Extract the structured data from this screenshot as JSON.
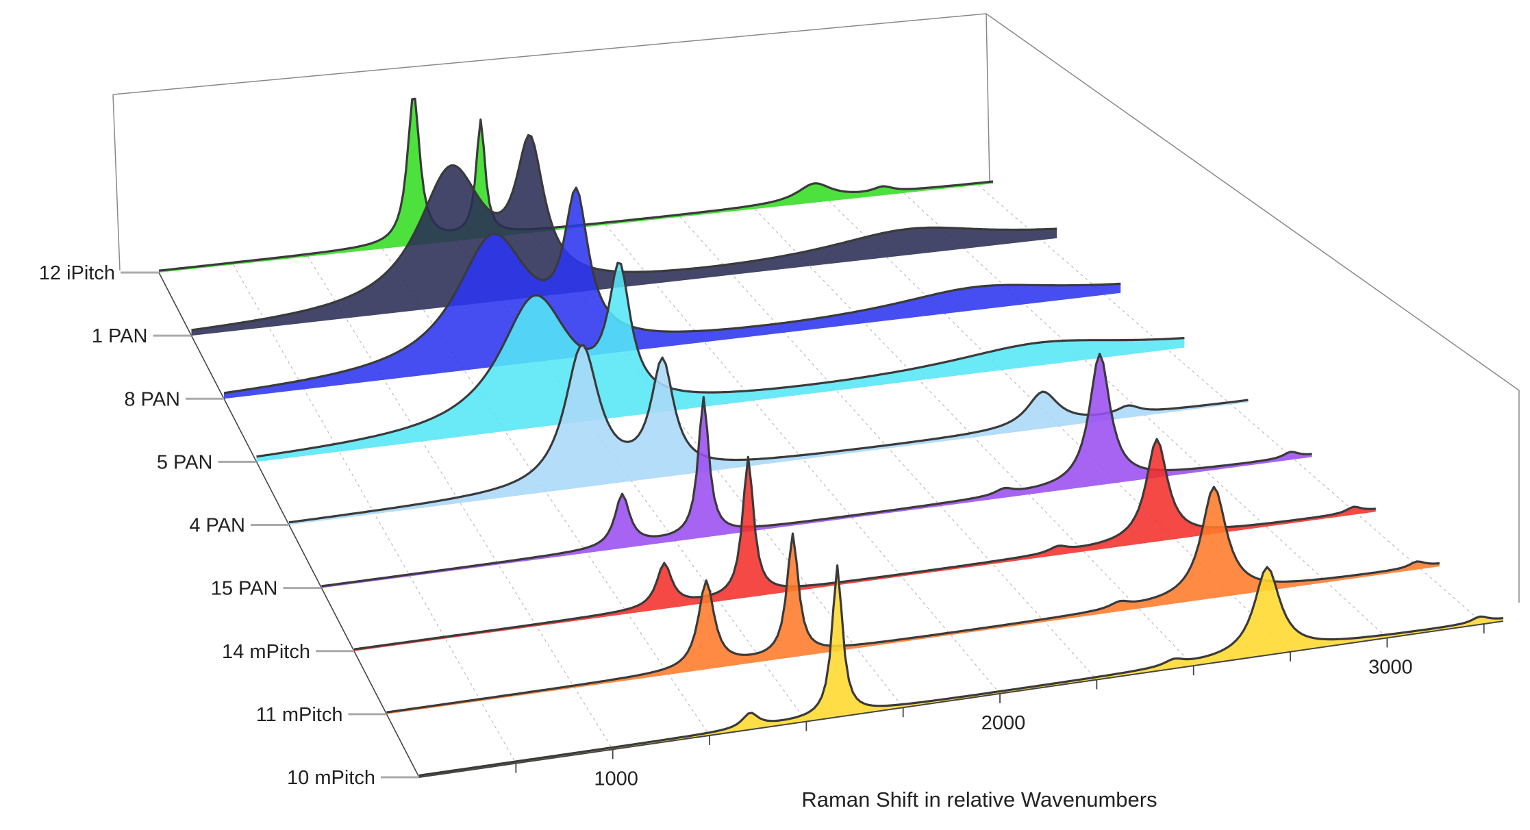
{
  "chart_data": {
    "type": "area",
    "title": "",
    "xlabel": "Raman Shift in relative Wavenumbers",
    "ylabel": "",
    "xlim": [
      500,
      3300
    ],
    "xticks": [
      1000,
      2000,
      3000
    ],
    "xtick_labels": [
      "1000",
      "2000",
      "3000"
    ],
    "grid": true,
    "legend": "none",
    "series": [
      {
        "name": "12 iPitch",
        "color": "#33dd22",
        "peaks": [
          {
            "x": 1355,
            "h": 0.52,
            "w": 25
          },
          {
            "x": 1580,
            "h": 0.4,
            "w": 18
          },
          {
            "x": 2700,
            "h": 0.06,
            "w": 70
          },
          {
            "x": 2930,
            "h": 0.02,
            "w": 40
          }
        ]
      },
      {
        "name": "1 PAN",
        "color": "#2a2e55",
        "peaks": [
          {
            "x": 1340,
            "h": 0.46,
            "w": 130
          },
          {
            "x": 1595,
            "h": 0.46,
            "w": 55
          },
          {
            "x": 2820,
            "h": 0.08,
            "w": 320
          }
        ]
      },
      {
        "name": "8 PAN",
        "color": "#2c35f0",
        "peaks": [
          {
            "x": 1340,
            "h": 0.44,
            "w": 140
          },
          {
            "x": 1600,
            "h": 0.48,
            "w": 45
          },
          {
            "x": 2850,
            "h": 0.07,
            "w": 320
          }
        ]
      },
      {
        "name": "5 PAN",
        "color": "#55e6f6",
        "peaks": [
          {
            "x": 1340,
            "h": 0.44,
            "w": 130
          },
          {
            "x": 1595,
            "h": 0.44,
            "w": 40
          },
          {
            "x": 2860,
            "h": 0.07,
            "w": 330
          }
        ]
      },
      {
        "name": "4 PAN",
        "color": "#a9d8f8",
        "peaks": [
          {
            "x": 1355,
            "h": 0.48,
            "w": 60
          },
          {
            "x": 1590,
            "h": 0.38,
            "w": 40
          },
          {
            "x": 2700,
            "h": 0.12,
            "w": 55
          },
          {
            "x": 2950,
            "h": 0.03,
            "w": 40
          }
        ]
      },
      {
        "name": "15 PAN",
        "color": "#9b4ef0",
        "peaks": [
          {
            "x": 1350,
            "h": 0.18,
            "w": 25
          },
          {
            "x": 1580,
            "h": 0.48,
            "w": 18
          },
          {
            "x": 2430,
            "h": 0.02,
            "w": 30
          },
          {
            "x": 2700,
            "h": 0.45,
            "w": 35
          },
          {
            "x": 3240,
            "h": 0.02,
            "w": 25
          }
        ]
      },
      {
        "name": "14 mPitch",
        "color": "#f2302a",
        "peaks": [
          {
            "x": 1350,
            "h": 0.15,
            "w": 25
          },
          {
            "x": 1580,
            "h": 0.48,
            "w": 18
          },
          {
            "x": 2430,
            "h": 0.02,
            "w": 30
          },
          {
            "x": 2700,
            "h": 0.35,
            "w": 35
          },
          {
            "x": 3240,
            "h": 0.02,
            "w": 25
          }
        ]
      },
      {
        "name": "11 mPitch",
        "color": "#ff7a2a",
        "peaks": [
          {
            "x": 1350,
            "h": 0.3,
            "w": 25
          },
          {
            "x": 1580,
            "h": 0.42,
            "w": 18
          },
          {
            "x": 2450,
            "h": 0.02,
            "w": 30
          },
          {
            "x": 2700,
            "h": 0.38,
            "w": 40
          },
          {
            "x": 3240,
            "h": 0.02,
            "w": 25
          }
        ]
      },
      {
        "name": "10 mPitch",
        "color": "#ffd82e",
        "peaks": [
          {
            "x": 1355,
            "h": 0.05,
            "w": 25
          },
          {
            "x": 1580,
            "h": 0.52,
            "w": 16
          },
          {
            "x": 2450,
            "h": 0.02,
            "w": 30
          },
          {
            "x": 2690,
            "h": 0.3,
            "w": 40
          },
          {
            "x": 3240,
            "h": 0.02,
            "w": 25
          }
        ]
      }
    ]
  }
}
